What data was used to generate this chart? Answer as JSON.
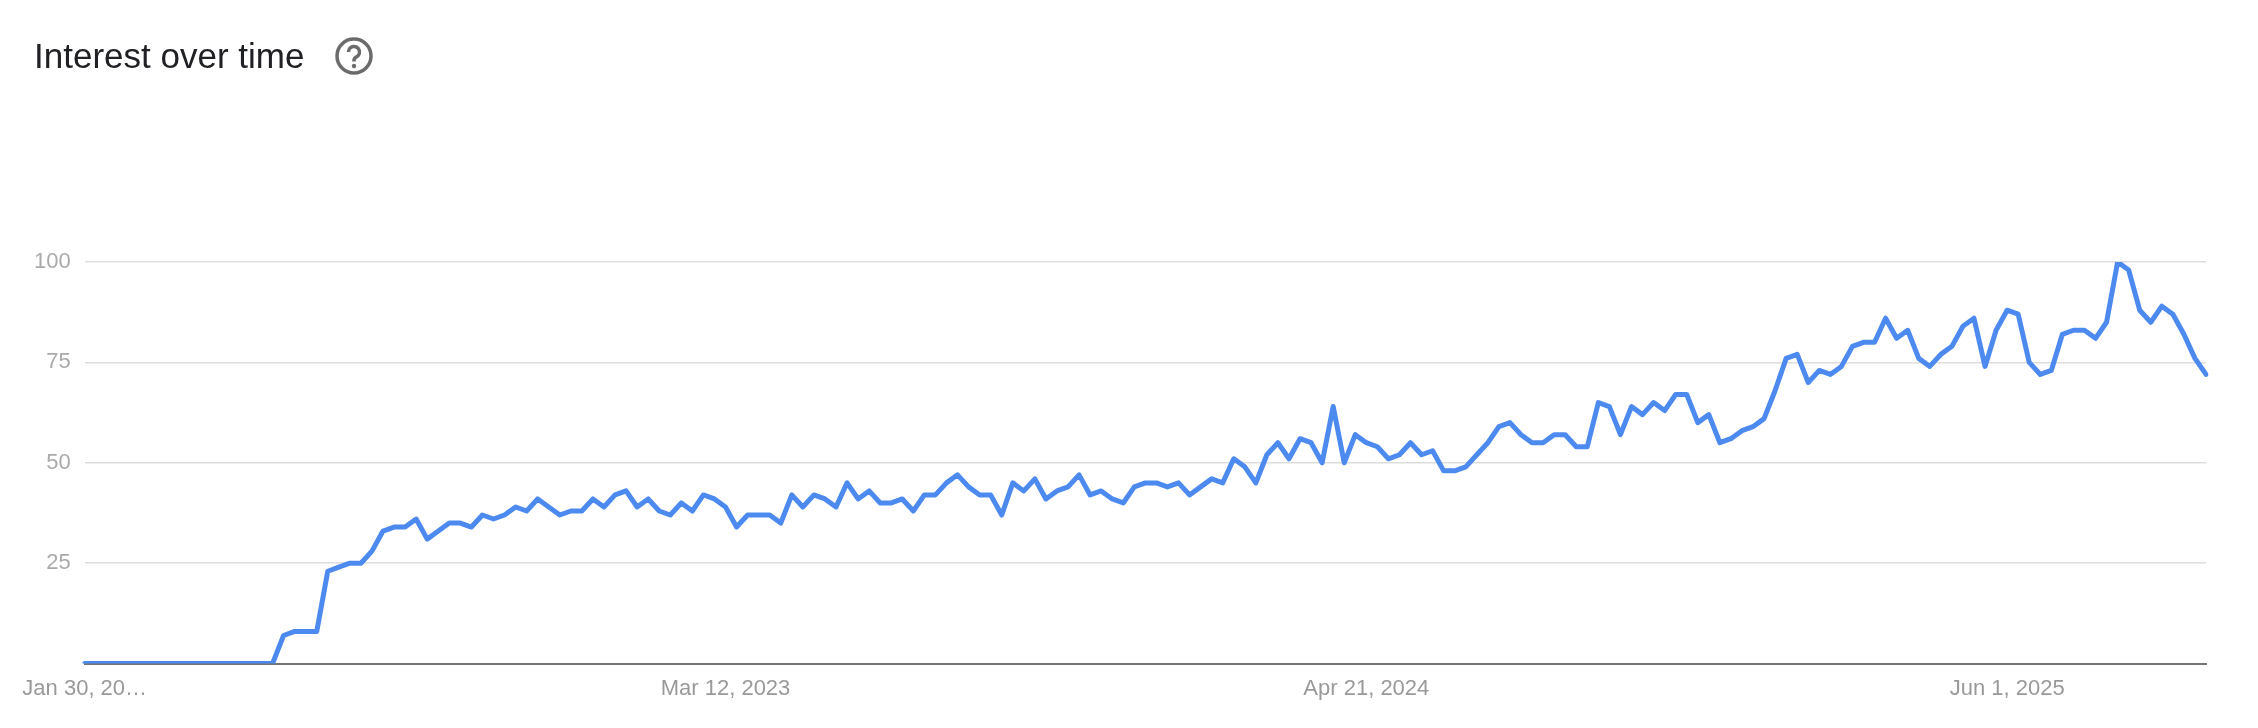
{
  "chart_data": {
    "type": "line",
    "title": "Interest over time",
    "categories": [
      "Jan 30, 20…",
      null,
      null,
      null,
      null,
      null,
      null,
      null,
      null,
      null,
      null,
      null,
      null,
      null,
      null,
      null,
      null,
      null,
      null,
      null,
      null,
      null,
      null,
      null,
      null,
      null,
      null,
      null,
      null,
      null,
      null,
      null,
      null,
      null,
      null,
      null,
      null,
      null,
      null,
      null,
      null,
      null,
      null,
      null,
      null,
      null,
      null,
      null,
      null,
      null,
      null,
      null,
      null,
      null,
      null,
      null,
      null,
      null,
      "Mar 12, 2023",
      null,
      null,
      null,
      null,
      null,
      null,
      null,
      null,
      null,
      null,
      null,
      null,
      null,
      null,
      null,
      null,
      null,
      null,
      null,
      null,
      null,
      null,
      null,
      null,
      null,
      null,
      null,
      null,
      null,
      null,
      null,
      null,
      null,
      null,
      null,
      null,
      null,
      null,
      null,
      null,
      null,
      null,
      null,
      null,
      null,
      null,
      null,
      null,
      null,
      null,
      null,
      null,
      null,
      null,
      null,
      null,
      null,
      "Apr 21, 2024",
      null,
      null,
      null,
      null,
      null,
      null,
      null,
      null,
      null,
      null,
      null,
      null,
      null,
      null,
      null,
      null,
      null,
      null,
      null,
      null,
      null,
      null,
      null,
      null,
      null,
      null,
      null,
      null,
      null,
      null,
      null,
      null,
      null,
      null,
      null,
      null,
      null,
      null,
      null,
      null,
      null,
      null,
      null,
      null,
      null,
      null,
      null,
      null,
      null,
      null,
      null,
      null,
      null,
      null,
      null,
      null,
      null,
      "Jun 1, 2025",
      null,
      null,
      null,
      null,
      null,
      null,
      null,
      null,
      null,
      null,
      null,
      null,
      null,
      null,
      null,
      null,
      null,
      null
    ],
    "series": [
      {
        "color": "#4d8af0",
        "values": [
          0,
          0,
          0,
          0,
          0,
          0,
          0,
          0,
          0,
          0,
          0,
          0,
          0,
          0,
          0,
          0,
          0,
          0,
          7,
          8,
          8,
          8,
          23,
          24,
          25,
          25,
          28,
          33,
          34,
          34,
          36,
          31,
          33,
          35,
          35,
          34,
          37,
          36,
          37,
          39,
          38,
          41,
          39,
          37,
          38,
          38,
          41,
          39,
          42,
          43,
          39,
          41,
          38,
          37,
          40,
          38,
          42,
          41,
          39,
          34,
          37,
          37,
          37,
          35,
          42,
          39,
          42,
          41,
          39,
          45,
          41,
          43,
          40,
          40,
          41,
          38,
          42,
          42,
          45,
          47,
          44,
          42,
          42,
          37,
          45,
          43,
          46,
          41,
          43,
          44,
          47,
          42,
          43,
          41,
          40,
          44,
          45,
          45,
          44,
          45,
          42,
          44,
          46,
          45,
          51,
          49,
          45,
          52,
          55,
          51,
          56,
          55,
          50,
          64,
          50,
          57,
          55,
          54,
          51,
          52,
          55,
          52,
          53,
          48,
          48,
          49,
          52,
          55,
          59,
          60,
          57,
          55,
          55,
          57,
          57,
          54,
          54,
          65,
          64,
          57,
          64,
          62,
          65,
          63,
          67,
          67,
          60,
          62,
          55,
          56,
          58,
          59,
          61,
          68,
          76,
          77,
          70,
          73,
          72,
          74,
          79,
          80,
          80,
          86,
          81,
          83,
          76,
          74,
          77,
          79,
          84,
          86,
          74,
          83,
          88,
          87,
          75,
          72,
          73,
          82,
          83,
          83,
          81,
          85,
          100,
          98,
          88,
          85,
          89,
          87,
          82,
          76,
          72
        ]
      }
    ],
    "ylim": [
      0,
      100
    ],
    "yticks": [
      25,
      50,
      75,
      100
    ],
    "grid": "y",
    "legend": false,
    "marker": "none",
    "line_style": "solid"
  }
}
